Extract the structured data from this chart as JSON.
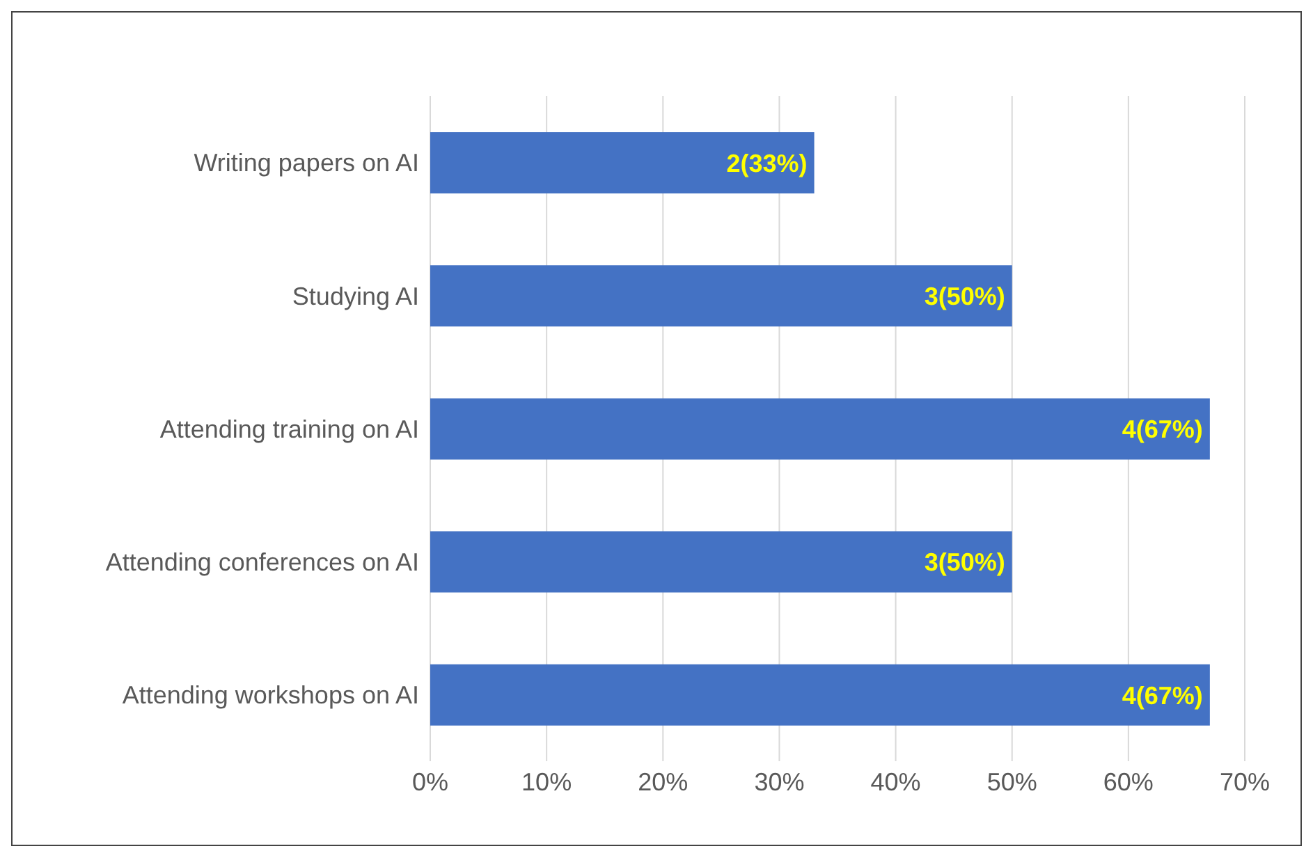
{
  "chart_data": {
    "type": "bar",
    "orientation": "horizontal",
    "categories": [
      "Writing papers on AI",
      "Studying AI",
      "Attending training on AI",
      "Attending conferences on AI",
      "Attending workshops on AI"
    ],
    "values": [
      33,
      50,
      67,
      50,
      67
    ],
    "value_labels": [
      "2(33%)",
      "3(50%)",
      "4(67%)",
      "3(50%)",
      "4(67%)"
    ],
    "color": "#4472c4",
    "xlim": [
      0,
      70
    ],
    "xticks": [
      {
        "value": 0,
        "label": "0%"
      },
      {
        "value": 10,
        "label": "10%"
      },
      {
        "value": 20,
        "label": "20%"
      },
      {
        "value": 30,
        "label": "30%"
      },
      {
        "value": 40,
        "label": "40%"
      },
      {
        "value": 50,
        "label": "50%"
      },
      {
        "value": 60,
        "label": "60%"
      },
      {
        "value": 70,
        "label": "70%"
      }
    ],
    "grid": "x",
    "legend": false
  }
}
